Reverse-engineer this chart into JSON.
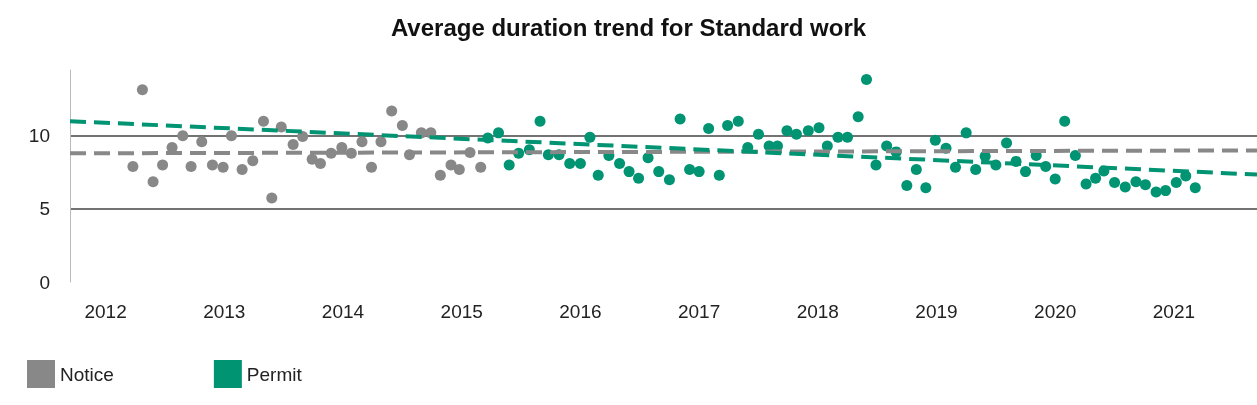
{
  "chart_data": {
    "type": "scatter",
    "title": "Average duration trend for Standard work",
    "xlim": [
      2011.7,
      2021.7
    ],
    "xticks": [
      2012,
      2013,
      2014,
      2015,
      2016,
      2017,
      2018,
      2019,
      2020,
      2021
    ],
    "ylim": [
      0,
      14.5
    ],
    "yticks": [
      0,
      5,
      10
    ],
    "grid": "y",
    "legend": "bottom left",
    "marker": "circle",
    "series": [
      {
        "name": "Notice",
        "color": "#888888",
        "x": [
          2012.23,
          2012.31,
          2012.4,
          2012.48,
          2012.56,
          2012.65,
          2012.72,
          2012.81,
          2012.9,
          2012.99,
          2013.06,
          2013.15,
          2013.24,
          2013.33,
          2013.4,
          2013.48,
          2013.58,
          2013.66,
          2013.74,
          2013.81,
          2013.9,
          2013.99,
          2014.07,
          2014.16,
          2014.24,
          2014.32,
          2014.41,
          2014.5,
          2014.56,
          2014.66,
          2014.74,
          2014.82,
          2014.91,
          2014.98,
          2015.07,
          2015.16
        ],
        "values": [
          7.9,
          13.15,
          6.85,
          8.0,
          9.2,
          10.0,
          7.9,
          9.6,
          8.0,
          7.85,
          10.0,
          7.7,
          8.3,
          11.0,
          5.75,
          10.6,
          9.4,
          9.95,
          8.4,
          8.1,
          8.8,
          9.2,
          8.8,
          9.6,
          7.85,
          9.6,
          11.7,
          10.7,
          8.7,
          10.2,
          10.2,
          7.3,
          8.0,
          7.7,
          8.85,
          7.85
        ]
      },
      {
        "name": "Permit",
        "color": "#009473",
        "x": [
          2015.22,
          2015.31,
          2015.4,
          2015.48,
          2015.57,
          2015.66,
          2015.73,
          2015.82,
          2015.91,
          2016.0,
          2016.08,
          2016.15,
          2016.24,
          2016.33,
          2016.41,
          2016.49,
          2016.57,
          2016.66,
          2016.75,
          2016.84,
          2016.92,
          2017.0,
          2017.08,
          2017.17,
          2017.24,
          2017.33,
          2017.41,
          2017.5,
          2017.59,
          2017.66,
          2017.74,
          2017.82,
          2017.92,
          2018.01,
          2018.08,
          2018.17,
          2018.25,
          2018.34,
          2018.41,
          2018.49,
          2018.58,
          2018.66,
          2018.75,
          2018.83,
          2018.91,
          2018.99,
          2019.08,
          2019.16,
          2019.25,
          2019.33,
          2019.41,
          2019.5,
          2019.59,
          2019.67,
          2019.75,
          2019.84,
          2019.92,
          2020.0,
          2020.08,
          2020.17,
          2020.26,
          2020.34,
          2020.41,
          2020.5,
          2020.59,
          2020.68,
          2020.76,
          2020.85,
          2020.93,
          2021.02,
          2021.1,
          2021.18
        ],
        "values": [
          9.85,
          10.2,
          8.0,
          8.8,
          9.05,
          11.0,
          8.7,
          8.7,
          8.1,
          8.1,
          9.9,
          7.3,
          8.65,
          8.1,
          7.55,
          7.1,
          8.5,
          7.55,
          7.0,
          11.15,
          7.7,
          7.55,
          10.5,
          7.3,
          10.7,
          11.0,
          9.2,
          10.1,
          9.3,
          9.3,
          10.35,
          10.1,
          10.35,
          10.55,
          9.3,
          9.9,
          9.9,
          11.3,
          13.85,
          8.0,
          9.3,
          8.9,
          6.6,
          7.7,
          6.45,
          9.7,
          9.15,
          7.85,
          10.2,
          7.7,
          8.6,
          8.0,
          9.5,
          8.25,
          7.55,
          8.65,
          7.9,
          7.05,
          11.0,
          8.65,
          6.7,
          7.1,
          7.6,
          6.8,
          6.5,
          6.85,
          6.65,
          6.15,
          6.25,
          6.8,
          7.25,
          6.45
        ]
      },
      {
        "type": "line",
        "color": "#888888",
        "line_style": "dashed",
        "marker": "none",
        "x": [
          2011.7,
          2021.7
        ],
        "values": [
          8.8,
          9.0
        ]
      },
      {
        "type": "line",
        "color": "#009473",
        "line_style": "dashed",
        "marker": "none",
        "x": [
          2011.7,
          2021.7
        ],
        "values": [
          11.0,
          7.35
        ]
      }
    ]
  }
}
